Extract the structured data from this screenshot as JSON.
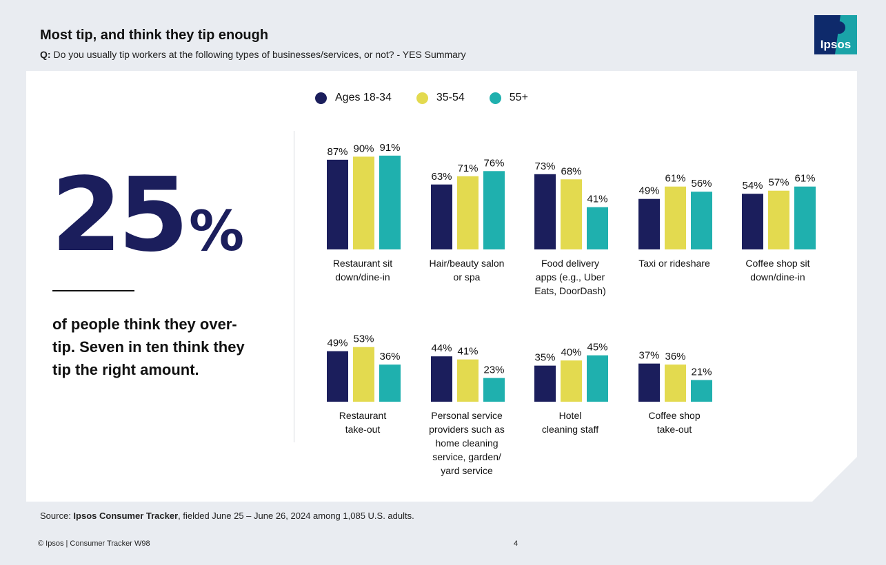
{
  "header": {
    "title": "Most tip, and think they tip enough",
    "question_prefix": "Q:",
    "question_text": "Do you usually tip workers at the following types of businesses/services, or not? - YES Summary"
  },
  "logo": {
    "text": "Ipsos",
    "bg": "#0e2a6b",
    "accent": "#1aa3a8"
  },
  "stat": {
    "number": "25",
    "percent_sign": "%",
    "text": "of people think they over-tip. Seven in ten think they tip the right amount."
  },
  "colors": {
    "series1": "#1b1e5c",
    "series2": "#e3da4f",
    "series3": "#1fb0ae",
    "card": "#ffffff"
  },
  "legend": [
    {
      "label": "Ages 18-34",
      "color": "#1b1e5c"
    },
    {
      "label": "35-54",
      "color": "#e3da4f"
    },
    {
      "label": "55+",
      "color": "#1fb0ae"
    }
  ],
  "chart_data": {
    "type": "bar",
    "title": "Do you usually tip workers at the following types of businesses/services, or not? - YES Summary",
    "unit": "%",
    "series": [
      {
        "name": "Ages 18-34",
        "values": [
          87,
          63,
          73,
          49,
          54,
          49,
          44,
          35,
          37
        ]
      },
      {
        "name": "35-54",
        "values": [
          90,
          71,
          68,
          61,
          57,
          53,
          41,
          40,
          36
        ]
      },
      {
        "name": "55+",
        "values": [
          91,
          76,
          41,
          56,
          61,
          36,
          23,
          45,
          21
        ]
      }
    ],
    "categories": [
      [
        "Restaurant sit",
        "down/dine-in"
      ],
      [
        "Hair/beauty salon",
        "or spa"
      ],
      [
        "Food delivery",
        "apps (e.g., Uber",
        "Eats, DoorDash)"
      ],
      [
        "Taxi or rideshare"
      ],
      [
        "Coffee shop sit",
        "down/dine-in"
      ],
      [
        "Restaurant",
        "take-out"
      ],
      [
        "Personal service",
        "providers such as",
        "home cleaning",
        "service, garden/",
        "yard service"
      ],
      [
        "Hotel",
        "cleaning staff"
      ],
      [
        "Coffee shop",
        "take-out"
      ]
    ]
  },
  "source": {
    "prefix": "Source: ",
    "bold": "Ipsos Consumer Tracker",
    "rest": ", fielded June 25 – June 26, 2024 among 1,085 U.S. adults."
  },
  "footer": {
    "text": "© Ipsos | Consumer Tracker W98",
    "page": "4"
  }
}
